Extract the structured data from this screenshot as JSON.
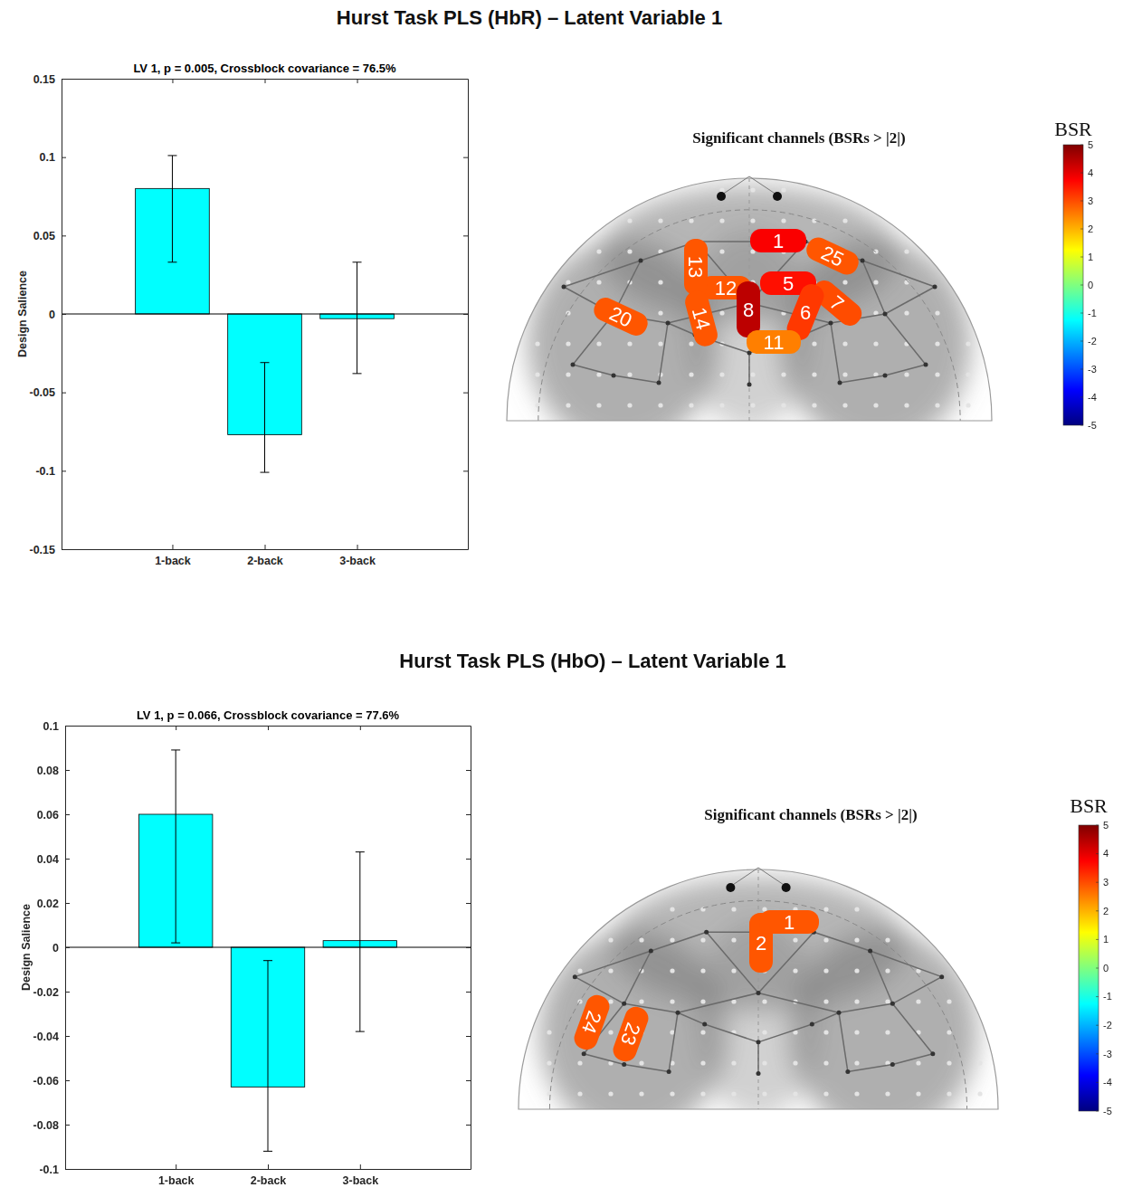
{
  "chart_data": [
    {
      "type": "bar",
      "heading": "Hurst Task PLS (HbR) – Latent Variable 1",
      "title": "LV 1, p = 0.005, Crossblock covariance = 76.5%",
      "y_label": "Design Salience",
      "categories": [
        "1-back",
        "2-back",
        "3-back"
      ],
      "values": [
        0.08,
        -0.077,
        -0.003
      ],
      "ci_lower": [
        0.033,
        -0.101,
        -0.038
      ],
      "ci_upper": [
        0.101,
        -0.031,
        0.033
      ],
      "color": "#00ffff",
      "ylim": [
        -0.15,
        0.15
      ],
      "yticks": [
        -0.15,
        -0.1,
        -0.05,
        0,
        0.05,
        0.1,
        0.15
      ],
      "map": {
        "title": "Significant channels (BSRs > |2|)",
        "channels": [
          {
            "label": "1",
            "bsr": 3.8
          },
          {
            "label": "25",
            "bsr": 2.9
          },
          {
            "label": "12",
            "bsr": 2.9
          },
          {
            "label": "13",
            "bsr": 2.9
          },
          {
            "label": "5",
            "bsr": 3.6
          },
          {
            "label": "7",
            "bsr": 3.0
          },
          {
            "label": "14",
            "bsr": 2.9
          },
          {
            "label": "8",
            "bsr": 4.4
          },
          {
            "label": "6",
            "bsr": 3.2
          },
          {
            "label": "11",
            "bsr": 2.5
          },
          {
            "label": "20",
            "bsr": 2.9
          }
        ],
        "colorbar": {
          "title": "BSR",
          "range": [
            -5,
            5
          ],
          "ticks": [
            -5,
            -4,
            -3,
            -2,
            -1,
            0,
            1,
            2,
            3,
            4,
            5
          ]
        }
      }
    },
    {
      "type": "bar",
      "heading": "Hurst Task PLS (HbO) – Latent Variable 1",
      "title": "LV 1, p = 0.066, Crossblock covariance = 77.6%",
      "y_label": "Design Salience",
      "categories": [
        "1-back",
        "2-back",
        "3-back"
      ],
      "values": [
        0.06,
        -0.063,
        0.003
      ],
      "ci_lower": [
        0.002,
        -0.092,
        -0.038
      ],
      "ci_upper": [
        0.089,
        -0.006,
        0.043
      ],
      "color": "#00ffff",
      "ylim": [
        -0.1,
        0.1
      ],
      "yticks": [
        -0.1,
        -0.08,
        -0.06,
        -0.04,
        -0.02,
        0,
        0.02,
        0.04,
        0.06,
        0.08,
        0.1
      ],
      "map": {
        "title": "Significant channels (BSRs > |2|)",
        "channels": [
          {
            "label": "2",
            "bsr": 2.9
          },
          {
            "label": "1",
            "bsr": 2.9
          },
          {
            "label": "24",
            "bsr": 2.9
          },
          {
            "label": "23",
            "bsr": 2.9
          }
        ],
        "colorbar": {
          "title": "BSR",
          "range": [
            -5,
            5
          ],
          "ticks": [
            -5,
            -4,
            -3,
            -2,
            -1,
            0,
            1,
            2,
            3,
            4,
            5
          ]
        }
      }
    }
  ]
}
